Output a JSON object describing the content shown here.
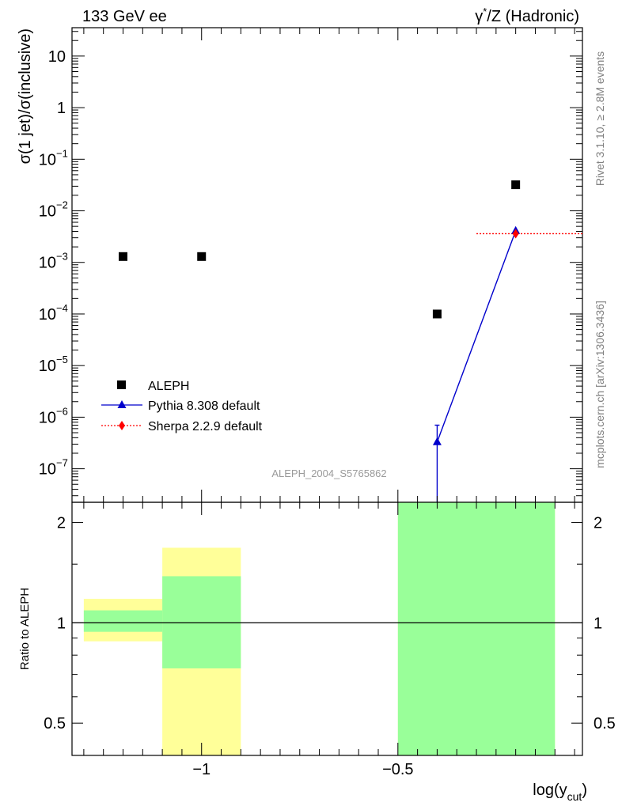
{
  "header": {
    "left": "133 GeV ee",
    "right_prefix": "γ",
    "right_sup": "*",
    "right_suffix": "/Z (Hadronic)"
  },
  "side_labels": {
    "rivet": "Rivet 3.1.10, ≥ 2.8M events",
    "mcplots": "mcplots.cern.ch [arXiv:1306.3436]"
  },
  "watermark": "ALEPH_2004_S5765862",
  "colors": {
    "data": "#000000",
    "pythia": "#0000cc",
    "sherpa": "#ff0000",
    "band_inner": "#99ff99",
    "band_outer": "#ffff99"
  },
  "chart_data": [
    {
      "type": "scatter",
      "ylabel": "σ(1 jet)/σ(inclusive)",
      "log_y": true,
      "xlim": [
        -1.33,
        -0.03
      ],
      "ylim_decades": [
        -7.65,
        1.55
      ],
      "y_ticks": [
        {
          "e": -7,
          "label": "10",
          "sup": "−7"
        },
        {
          "e": -6,
          "label": "10",
          "sup": "−6"
        },
        {
          "e": -5,
          "label": "10",
          "sup": "−5"
        },
        {
          "e": -4,
          "label": "10",
          "sup": "−4"
        },
        {
          "e": -3,
          "label": "10",
          "sup": "−3"
        },
        {
          "e": -2,
          "label": "10",
          "sup": "−2"
        },
        {
          "e": -1,
          "label": "10",
          "sup": "−1"
        },
        {
          "e": 0,
          "label": "1",
          "sup": ""
        },
        {
          "e": 1,
          "label": "10",
          "sup": ""
        }
      ],
      "legend_position": "middle-left",
      "series": [
        {
          "name": "ALEPH",
          "style": "square",
          "x": [
            -1.2,
            -1.0,
            -0.4,
            -0.2
          ],
          "y": [
            0.0013,
            0.0013,
            0.0001,
            0.032
          ]
        },
        {
          "name": "Pythia 8.308 default",
          "style": "triangle-line",
          "x": [
            -0.4,
            -0.2
          ],
          "y": [
            3.3e-07,
            0.0041
          ],
          "yerr_up": [
            7e-07,
            null
          ]
        },
        {
          "name": "Sherpa 2.2.9 default",
          "style": "diamond-dotted",
          "x": [
            -0.2
          ],
          "y": [
            0.0036
          ],
          "xerr": [
            [
              -0.3,
              -0.03
            ]
          ]
        }
      ]
    },
    {
      "type": "area",
      "ylabel": "Ratio to ALEPH",
      "xlabel": "log(y",
      "xlabel_sub": "cut",
      "xlabel_close": ")",
      "log_y": true,
      "ylim": [
        0.4,
        2.3
      ],
      "xlim": [
        -1.33,
        -0.03
      ],
      "x_ticks": [
        {
          "v": -1,
          "label": "−1"
        },
        {
          "v": -0.5,
          "label": "−0.5"
        }
      ],
      "y_ticks": [
        {
          "v": 0.5,
          "label": "0.5"
        },
        {
          "v": 1,
          "label": "1"
        },
        {
          "v": 2,
          "label": "2"
        }
      ],
      "reference_line": 1,
      "bands": [
        {
          "x0": -1.3,
          "x1": -1.1,
          "outer": [
            0.88,
            1.18
          ],
          "inner": [
            0.94,
            1.09
          ]
        },
        {
          "x0": -1.1,
          "x1": -0.9,
          "outer": [
            0.35,
            1.68
          ],
          "inner": [
            0.73,
            1.38
          ]
        },
        {
          "x0": -0.5,
          "x1": -0.1,
          "outer": [
            0.35,
            2.5
          ],
          "inner": [
            0.35,
            2.5
          ]
        }
      ]
    }
  ]
}
